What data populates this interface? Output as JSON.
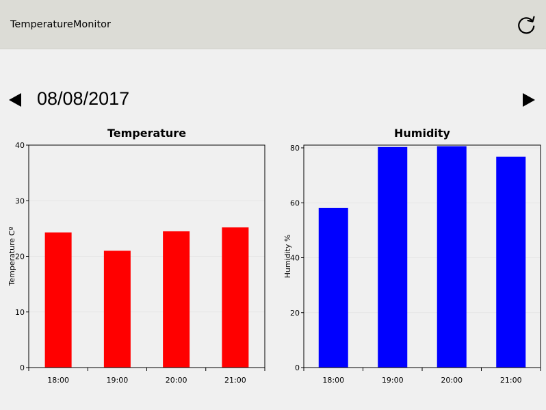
{
  "app": {
    "title": "TemperatureMonitor"
  },
  "toolbar": {
    "refresh_icon": "refresh-icon"
  },
  "navigation": {
    "date": "08/08/2017",
    "prev_icon": "triangle-left-icon",
    "next_icon": "triangle-right-icon"
  },
  "chart_data": [
    {
      "type": "bar",
      "title": "Temperature",
      "xlabel": "",
      "ylabel": "Temperature Cº",
      "categories": [
        "18:00",
        "19:00",
        "20:00",
        "21:00"
      ],
      "values": [
        24.3,
        21.0,
        24.5,
        25.2
      ],
      "ylim": [
        0,
        40
      ],
      "yticks": [
        0,
        10,
        20,
        30,
        40
      ],
      "color": "#ff0000",
      "grid": true
    },
    {
      "type": "bar",
      "title": "Humidity",
      "xlabel": "",
      "ylabel": "Humidity %",
      "categories": [
        "18:00",
        "19:00",
        "20:00",
        "21:00"
      ],
      "values": [
        58.1,
        80.3,
        80.6,
        76.8
      ],
      "ylim": [
        0,
        81
      ],
      "yticks": [
        0,
        20,
        40,
        60,
        80
      ],
      "color": "#0000ff",
      "grid": true
    }
  ]
}
